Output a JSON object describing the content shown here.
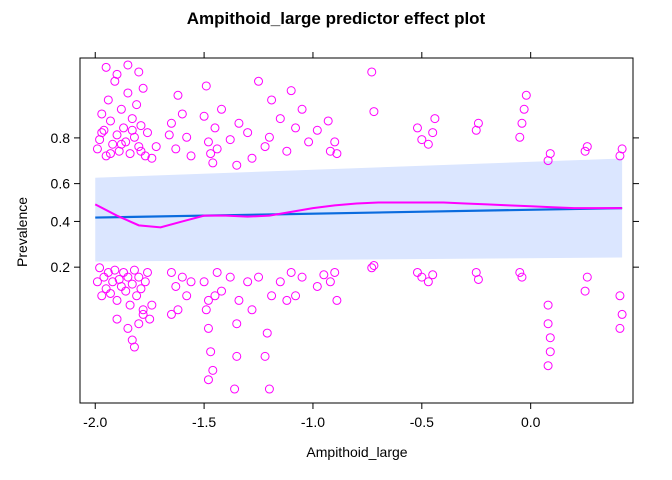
{
  "chart_data": {
    "type": "scatter",
    "title": "Ampithoid_large predictor effect plot",
    "xlabel": "Ampithoid_large",
    "ylabel": "Prevalence",
    "xlim": [
      -2.07,
      0.47
    ],
    "logit_ylim": [
      -4.3,
      3.1
    ],
    "x_ticks": [
      -2.0,
      -1.5,
      -1.0,
      -0.5,
      0.0
    ],
    "x_tick_labels": [
      "-2.0",
      "-1.5",
      "-1.0",
      "-0.5",
      "0.0"
    ],
    "y_ticks": [
      0.2,
      0.4,
      0.6,
      0.8
    ],
    "y_tick_labels": [
      "0.2",
      "0.4",
      "0.6",
      "0.8"
    ],
    "y_scale": "logit",
    "grid": false,
    "colors": {
      "points": "#ff00ff",
      "fit_line": "#0a6bde",
      "smooth_line": "#ff00ff",
      "confidence_band": "#dbe6ff",
      "frame": "#000000"
    },
    "fit_line": {
      "x": [
        -2.0,
        0.42
      ],
      "y": [
        0.42,
        0.47
      ]
    },
    "confidence_band": {
      "x": [
        -2.0,
        0.42
      ],
      "lower": [
        0.22,
        0.235
      ],
      "upper": [
        0.63,
        0.72
      ]
    },
    "smooth_line": {
      "x": [
        -2.0,
        -1.9,
        -1.8,
        -1.7,
        -1.6,
        -1.5,
        -1.4,
        -1.3,
        -1.2,
        -1.1,
        -1.0,
        -0.9,
        -0.8,
        -0.7,
        -0.6,
        -0.5,
        -0.4,
        -0.3,
        -0.2,
        -0.1,
        0.0,
        0.1,
        0.2,
        0.3,
        0.42
      ],
      "y": [
        0.49,
        0.43,
        0.38,
        0.37,
        0.4,
        0.43,
        0.43,
        0.425,
        0.43,
        0.45,
        0.47,
        0.485,
        0.495,
        0.5,
        0.5,
        0.5,
        0.5,
        0.495,
        0.49,
        0.485,
        0.48,
        0.475,
        0.47,
        0.47,
        0.47
      ]
    },
    "points_top": [
      [
        -1.99,
        1.15
      ],
      [
        -1.98,
        1.35
      ],
      [
        -1.97,
        1.9
      ],
      [
        -1.96,
        1.55
      ],
      [
        -1.95,
        1.0
      ],
      [
        -1.94,
        2.2
      ],
      [
        -1.93,
        1.75
      ],
      [
        -1.92,
        1.25
      ],
      [
        -1.91,
        2.6
      ],
      [
        -1.9,
        1.45
      ],
      [
        -1.89,
        1.1
      ],
      [
        -1.88,
        2.0
      ],
      [
        -1.87,
        1.6
      ],
      [
        -1.86,
        1.3
      ],
      [
        -1.85,
        2.35
      ],
      [
        -1.84,
        1.05
      ],
      [
        -1.83,
        1.8
      ],
      [
        -1.82,
        1.4
      ],
      [
        -1.81,
        2.1
      ],
      [
        -1.8,
        1.2
      ],
      [
        -1.79,
        1.65
      ],
      [
        -1.78,
        2.45
      ],
      [
        -1.77,
        1.0
      ],
      [
        -1.76,
        1.5
      ],
      [
        -1.95,
        2.9
      ],
      [
        -1.9,
        2.75
      ],
      [
        -1.85,
        2.95
      ],
      [
        -1.8,
        2.8
      ],
      [
        -1.97,
        1.5
      ],
      [
        -1.93,
        1.05
      ],
      [
        -1.88,
        1.25
      ],
      [
        -1.83,
        1.55
      ],
      [
        -1.79,
        1.1
      ],
      [
        -1.74,
        0.95
      ],
      [
        -1.72,
        1.2
      ],
      [
        -1.65,
        1.7
      ],
      [
        -1.63,
        1.15
      ],
      [
        -1.6,
        1.9
      ],
      [
        -1.58,
        1.4
      ],
      [
        -1.56,
        1.0
      ],
      [
        -1.62,
        2.3
      ],
      [
        -1.66,
        1.45
      ],
      [
        -1.5,
        1.85
      ],
      [
        -1.49,
        2.5
      ],
      [
        -1.48,
        1.3
      ],
      [
        -1.47,
        1.05
      ],
      [
        -1.46,
        0.85
      ],
      [
        -1.45,
        1.6
      ],
      [
        -1.44,
        1.15
      ],
      [
        -1.42,
        2.0
      ],
      [
        -1.38,
        1.35
      ],
      [
        -1.35,
        0.8
      ],
      [
        -1.34,
        1.7
      ],
      [
        -1.3,
        1.5
      ],
      [
        -1.28,
        0.95
      ],
      [
        -1.25,
        2.6
      ],
      [
        -1.22,
        1.2
      ],
      [
        -1.2,
        1.4
      ],
      [
        -1.19,
        2.2
      ],
      [
        -1.15,
        1.8
      ],
      [
        -1.12,
        1.1
      ],
      [
        -1.1,
        2.4
      ],
      [
        -1.08,
        1.6
      ],
      [
        -1.05,
        2.0
      ],
      [
        -1.02,
        1.3
      ],
      [
        -0.98,
        1.55
      ],
      [
        -0.93,
        1.75
      ],
      [
        -0.92,
        1.1
      ],
      [
        -0.9,
        1.3
      ],
      [
        -0.89,
        1.05
      ],
      [
        -0.72,
        1.95
      ],
      [
        -0.73,
        2.8
      ],
      [
        -0.52,
        1.6
      ],
      [
        -0.5,
        1.35
      ],
      [
        -0.47,
        1.25
      ],
      [
        -0.45,
        1.5
      ],
      [
        -0.44,
        1.8
      ],
      [
        -0.25,
        1.55
      ],
      [
        -0.24,
        1.7
      ],
      [
        -0.05,
        1.4
      ],
      [
        -0.04,
        1.7
      ],
      [
        -0.03,
        2.0
      ],
      [
        -0.02,
        2.3
      ],
      [
        0.08,
        0.9
      ],
      [
        0.09,
        1.05
      ],
      [
        0.25,
        1.1
      ],
      [
        0.26,
        1.2
      ],
      [
        0.41,
        1.0
      ],
      [
        0.42,
        1.15
      ]
    ],
    "points_bottom": [
      [
        -1.99,
        -1.7
      ],
      [
        -1.98,
        -1.4
      ],
      [
        -1.97,
        -2.0
      ],
      [
        -1.96,
        -1.6
      ],
      [
        -1.95,
        -1.85
      ],
      [
        -1.94,
        -1.5
      ],
      [
        -1.93,
        -1.95
      ],
      [
        -1.92,
        -1.7
      ],
      [
        -1.91,
        -1.45
      ],
      [
        -1.9,
        -2.1
      ],
      [
        -1.89,
        -1.65
      ],
      [
        -1.88,
        -1.8
      ],
      [
        -1.87,
        -1.5
      ],
      [
        -1.86,
        -1.9
      ],
      [
        -1.85,
        -1.6
      ],
      [
        -1.84,
        -2.2
      ],
      [
        -1.83,
        -1.75
      ],
      [
        -1.82,
        -1.45
      ],
      [
        -1.81,
        -2.0
      ],
      [
        -1.8,
        -1.6
      ],
      [
        -1.79,
        -1.85
      ],
      [
        -1.78,
        -2.3
      ],
      [
        -1.77,
        -1.7
      ],
      [
        -1.76,
        -1.5
      ],
      [
        -1.9,
        -2.5
      ],
      [
        -1.85,
        -2.7
      ],
      [
        -1.83,
        -2.95
      ],
      [
        -1.82,
        -3.1
      ],
      [
        -1.8,
        -2.6
      ],
      [
        -1.78,
        -2.4
      ],
      [
        -1.75,
        -2.5
      ],
      [
        -1.74,
        -2.2
      ],
      [
        -1.65,
        -1.5
      ],
      [
        -1.63,
        -1.8
      ],
      [
        -1.6,
        -1.6
      ],
      [
        -1.58,
        -2.0
      ],
      [
        -1.56,
        -1.7
      ],
      [
        -1.62,
        -2.3
      ],
      [
        -1.5,
        -1.7
      ],
      [
        -1.49,
        -2.3
      ],
      [
        -1.48,
        -2.7
      ],
      [
        -1.47,
        -3.2
      ],
      [
        -1.46,
        -3.6
      ],
      [
        -1.45,
        -2.0
      ],
      [
        -1.44,
        -1.5
      ],
      [
        -1.42,
        -1.9
      ],
      [
        -1.38,
        -1.6
      ],
      [
        -1.35,
        -3.3
      ],
      [
        -1.34,
        -2.1
      ],
      [
        -1.3,
        -1.7
      ],
      [
        -1.28,
        -2.3
      ],
      [
        -1.25,
        -1.6
      ],
      [
        -1.22,
        -3.3
      ],
      [
        -1.2,
        -4.0
      ],
      [
        -1.19,
        -2.0
      ],
      [
        -1.15,
        -1.7
      ],
      [
        -1.12,
        -2.1
      ],
      [
        -1.1,
        -1.5
      ],
      [
        -1.08,
        -2.0
      ],
      [
        -1.05,
        -1.6
      ],
      [
        -0.98,
        -1.8
      ],
      [
        -0.95,
        -1.55
      ],
      [
        -0.92,
        -1.7
      ],
      [
        -0.9,
        -1.5
      ],
      [
        -0.89,
        -2.1
      ],
      [
        -0.73,
        -1.4
      ],
      [
        -0.72,
        -1.35
      ],
      [
        -0.52,
        -1.5
      ],
      [
        -0.5,
        -1.6
      ],
      [
        -0.47,
        -1.7
      ],
      [
        -0.45,
        -1.55
      ],
      [
        -0.25,
        -1.5
      ],
      [
        -0.24,
        -1.65
      ],
      [
        -0.05,
        -1.5
      ],
      [
        -0.04,
        -1.6
      ],
      [
        0.08,
        -2.2
      ],
      [
        0.08,
        -2.6
      ],
      [
        0.09,
        -2.9
      ],
      [
        0.09,
        -3.2
      ],
      [
        0.08,
        -3.5
      ],
      [
        0.25,
        -1.9
      ],
      [
        0.26,
        -1.6
      ],
      [
        0.41,
        -2.0
      ],
      [
        0.42,
        -2.4
      ],
      [
        0.41,
        -2.7
      ],
      [
        -1.65,
        -2.4
      ],
      [
        -1.48,
        -3.8
      ],
      [
        -1.36,
        -4.0
      ],
      [
        -1.48,
        -2.1
      ],
      [
        -1.35,
        -2.6
      ],
      [
        -1.21,
        -2.8
      ]
    ]
  }
}
